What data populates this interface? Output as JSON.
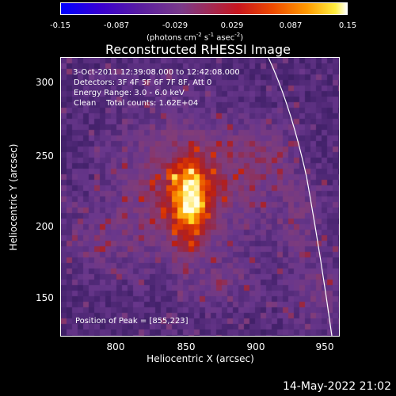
{
  "colorbar": {
    "ticks": [
      "-0.15",
      "-0.087",
      "-0.029",
      "0.029",
      "0.087",
      "0.15"
    ],
    "unit_label_parts": [
      "(photons cm",
      "-2",
      " s",
      "-1",
      " asec",
      "-2",
      ")"
    ]
  },
  "title": "Reconstructed RHESSI Image",
  "info": {
    "line1": " 3-Oct-2011 12:39:08.000 to 12:42:08.000",
    "line2": "Detectors: 3F 4F 5F 6F 7F 8F, Att 0",
    "line3": "Energy Range: 3.0 - 6.0 keV",
    "line4": "Clean    Total counts: 1.62E+04",
    "peak": "Position of Peak = [855,223]"
  },
  "axes": {
    "xlabel": "Heliocentric X (arcsec)",
    "ylabel": "Heliocentric Y (arcsec)",
    "xticks": [
      "800",
      "850",
      "900",
      "950"
    ],
    "yticks": [
      "300",
      "250",
      "200",
      "150"
    ],
    "xlim": [
      760,
      960
    ],
    "ylim": [
      123,
      323
    ]
  },
  "timestamp": "14-May-2022 21:02",
  "colors": {
    "background": "#000000",
    "limb_line": "#ffffff"
  }
}
